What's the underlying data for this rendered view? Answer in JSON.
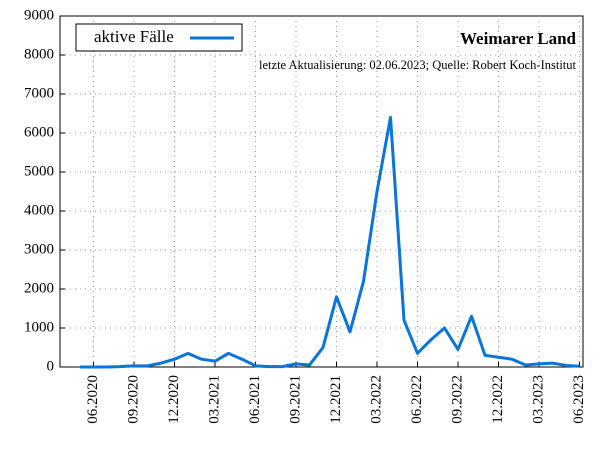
{
  "chart_data": {
    "type": "line",
    "title": "Weimarer Land",
    "subtitle": "letzte Aktualisierung: 02.06.2023; Quelle: Robert Koch-Institut",
    "x": [
      "05.2020",
      "06.2020",
      "07.2020",
      "08.2020",
      "09.2020",
      "10.2020",
      "11.2020",
      "12.2020",
      "01.2021",
      "02.2021",
      "03.2021",
      "04.2021",
      "05.2021",
      "06.2021",
      "07.2021",
      "08.2021",
      "09.2021",
      "10.2021",
      "11.2021",
      "12.2021",
      "01.2022",
      "02.2022",
      "03.2022",
      "04.2022",
      "05.2022",
      "06.2022",
      "07.2022",
      "08.2022",
      "09.2022",
      "10.2022",
      "11.2022",
      "12.2022",
      "01.2023",
      "02.2023",
      "03.2023",
      "04.2023",
      "05.2023",
      "06.2023"
    ],
    "series": [
      {
        "name": "aktive Fälle",
        "color": "#0a74da",
        "values": [
          0,
          0,
          0,
          10,
          30,
          30,
          100,
          200,
          350,
          200,
          150,
          350,
          200,
          30,
          10,
          10,
          80,
          50,
          500,
          1800,
          900,
          2200,
          4500,
          6400,
          1200,
          350,
          700,
          1000,
          450,
          1300,
          300,
          250,
          200,
          50,
          80,
          100,
          40,
          20
        ]
      }
    ],
    "ylim": [
      0,
      9000
    ],
    "yticks": [
      0,
      1000,
      2000,
      3000,
      4000,
      5000,
      6000,
      7000,
      8000,
      9000
    ],
    "xticks": [
      "06.2020",
      "09.2020",
      "12.2020",
      "03.2021",
      "06.2021",
      "09.2021",
      "12.2021",
      "03.2022",
      "06.2022",
      "09.2022",
      "12.2022",
      "03.2023",
      "06.2023"
    ],
    "grid": true,
    "legend": "upper left"
  }
}
